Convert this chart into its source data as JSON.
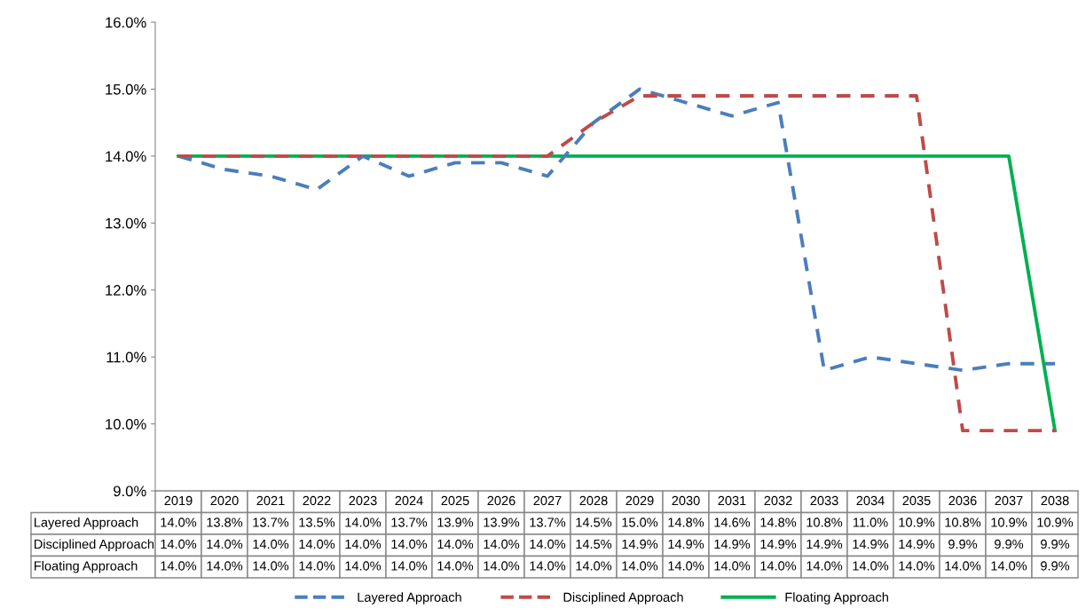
{
  "chart_data": {
    "type": "line",
    "categories": [
      "2019",
      "2020",
      "2021",
      "2022",
      "2023",
      "2024",
      "2025",
      "2026",
      "2027",
      "2028",
      "2029",
      "2030",
      "2031",
      "2032",
      "2033",
      "2034",
      "2035",
      "2036",
      "2037",
      "2038"
    ],
    "series": [
      {
        "name": "Layered Approach",
        "color": "#4a7ebb",
        "line_style": "dashed",
        "values": [
          14.0,
          13.8,
          13.7,
          13.5,
          14.0,
          13.7,
          13.9,
          13.9,
          13.7,
          14.5,
          15.0,
          14.8,
          14.6,
          14.8,
          10.8,
          11.0,
          10.9,
          10.8,
          10.9,
          10.9
        ],
        "value_labels": [
          "14.0%",
          "13.8%",
          "13.7%",
          "13.5%",
          "14.0%",
          "13.7%",
          "13.9%",
          "13.9%",
          "13.7%",
          "14.5%",
          "15.0%",
          "14.8%",
          "14.6%",
          "14.8%",
          "10.8%",
          "11.0%",
          "10.9%",
          "10.8%",
          "10.9%",
          "10.9%"
        ]
      },
      {
        "name": "Disciplined Approach",
        "color": "#be4b48",
        "line_style": "dashed",
        "values": [
          14.0,
          14.0,
          14.0,
          14.0,
          14.0,
          14.0,
          14.0,
          14.0,
          14.0,
          14.5,
          14.9,
          14.9,
          14.9,
          14.9,
          14.9,
          14.9,
          14.9,
          9.9,
          9.9,
          9.9
        ],
        "value_labels": [
          "14.0%",
          "14.0%",
          "14.0%",
          "14.0%",
          "14.0%",
          "14.0%",
          "14.0%",
          "14.0%",
          "14.0%",
          "14.5%",
          "14.9%",
          "14.9%",
          "14.9%",
          "14.9%",
          "14.9%",
          "14.9%",
          "14.9%",
          "9.9%",
          "9.9%",
          "9.9%"
        ]
      },
      {
        "name": "Floating Approach",
        "color": "#00b050",
        "line_style": "solid",
        "values": [
          14.0,
          14.0,
          14.0,
          14.0,
          14.0,
          14.0,
          14.0,
          14.0,
          14.0,
          14.0,
          14.0,
          14.0,
          14.0,
          14.0,
          14.0,
          14.0,
          14.0,
          14.0,
          14.0,
          9.9
        ],
        "value_labels": [
          "14.0%",
          "14.0%",
          "14.0%",
          "14.0%",
          "14.0%",
          "14.0%",
          "14.0%",
          "14.0%",
          "14.0%",
          "14.0%",
          "14.0%",
          "14.0%",
          "14.0%",
          "14.0%",
          "14.0%",
          "14.0%",
          "14.0%",
          "14.0%",
          "14.0%",
          "9.9%"
        ]
      }
    ],
    "ylim": [
      9.0,
      16.0
    ],
    "yticks": [
      {
        "value": 9.0,
        "label": "9.0%"
      },
      {
        "value": 10.0,
        "label": "10.0%"
      },
      {
        "value": 11.0,
        "label": "11.0%"
      },
      {
        "value": 12.0,
        "label": "12.0%"
      },
      {
        "value": 13.0,
        "label": "13.0%"
      },
      {
        "value": 14.0,
        "label": "14.0%"
      },
      {
        "value": 15.0,
        "label": "15.0%"
      },
      {
        "value": 16.0,
        "label": "16.0%"
      }
    ],
    "grid": false,
    "legend": "bottom",
    "tick_labels": "y",
    "marker": "none"
  }
}
